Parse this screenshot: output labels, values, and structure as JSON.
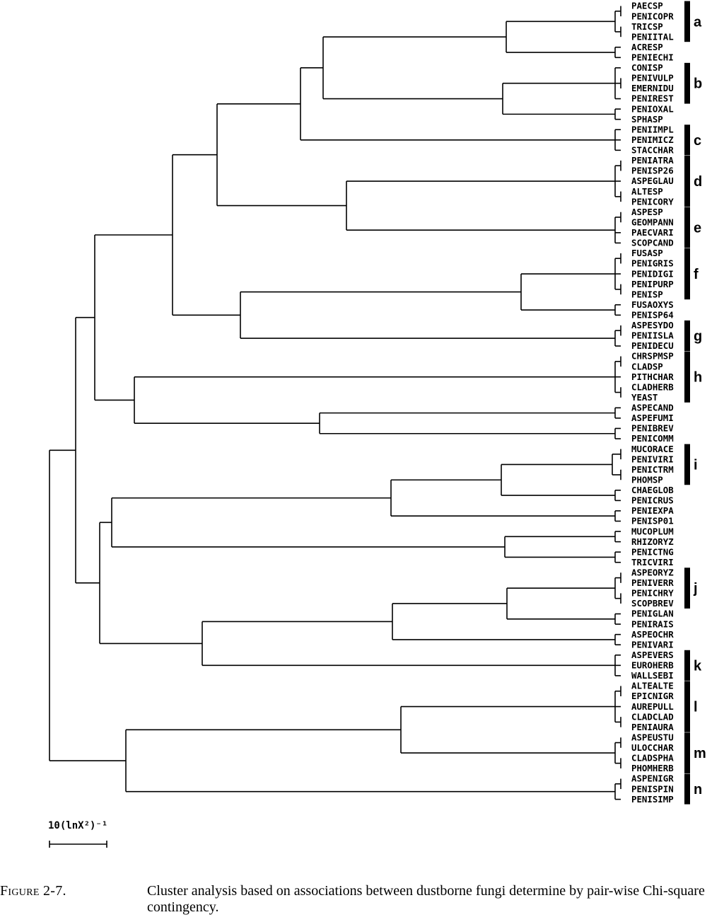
{
  "leaves": [
    "PAECSP",
    "PENICOPR",
    "TRICSP",
    "PENIITAL",
    "ACRESP",
    "PENIECHI",
    "CONISP",
    "PENIVULP",
    "EMERNIDU",
    "PENIREST",
    "PENIOXAL",
    "SPHASP",
    "PENIIMPL",
    "PENIMICZ",
    "STACCHAR",
    "PENIATRA",
    "PENISP26",
    "ASPEGLAU",
    "ALTESP",
    "PENICORY",
    "ASPESP",
    "GEOMPANN",
    "PAECVARI",
    "SCOPCAND",
    "FUSASP",
    "PENIGRIS",
    "PENIDIGI",
    "PENIPURP",
    "PENISP",
    "FUSAOXYS",
    "PENISP64",
    "ASPESYDO",
    "PENIISLA",
    "PENIDECU",
    "CHRSPMSP",
    "CLADSP",
    "PITHCHAR",
    "CLADHERB",
    "YEAST",
    "ASPECAND",
    "ASPEFUMI",
    "PENIBREV",
    "PENICOMM",
    "MUCORACE",
    "PENIVIRI",
    "PENICTRM",
    "PHOMSP",
    "CHAEGLOB",
    "PENICRUS",
    "PENIEXPA",
    "PENISP01",
    "MUCOPLUM",
    "RHIZORYZ",
    "PENICTNG",
    "TRICVIRI",
    "ASPEORYZ",
    "PENIVERR",
    "PENICHRY",
    "SCOPBREV",
    "PENIGLAN",
    "PENIRAIS",
    "ASPEOCHR",
    "PENIVARI",
    "ASPEVERS",
    "EUROHERB",
    "WALLSEBI",
    "ALTEALTE",
    "EPICNIGR",
    "AUREPULL",
    "CLADCLAD",
    "PENIAURA",
    "ASPEUSTU",
    "ULOCCHAR",
    "CLADSPHA",
    "PHOMHERB",
    "ASPENIGR",
    "PENISPIN",
    "PENISIMP"
  ],
  "groups": [
    {
      "letter": "a",
      "first": 0,
      "last": 3
    },
    {
      "letter": "b",
      "first": 6,
      "last": 9
    },
    {
      "letter": "c",
      "first": 12,
      "last": 14
    },
    {
      "letter": "d",
      "first": 15,
      "last": 19
    },
    {
      "letter": "e",
      "first": 20,
      "last": 23
    },
    {
      "letter": "f",
      "first": 24,
      "last": 28
    },
    {
      "letter": "g",
      "first": 31,
      "last": 33
    },
    {
      "letter": "h",
      "first": 34,
      "last": 38
    },
    {
      "letter": "i",
      "first": 43,
      "last": 46
    },
    {
      "letter": "j",
      "first": 55,
      "last": 58
    },
    {
      "letter": "k",
      "first": 63,
      "last": 65
    },
    {
      "letter": "l",
      "first": 66,
      "last": 70
    },
    {
      "letter": "m",
      "first": 71,
      "last": 74
    },
    {
      "letter": "n",
      "first": 75,
      "last": 77
    }
  ],
  "scale_bar": {
    "label": "10(lnX²)⁻¹"
  },
  "caption": {
    "label": "Figure 2-7.",
    "text": "Cluster analysis based on associations between dustborne fungi determine by pair-wise Chi-square contingency."
  }
}
